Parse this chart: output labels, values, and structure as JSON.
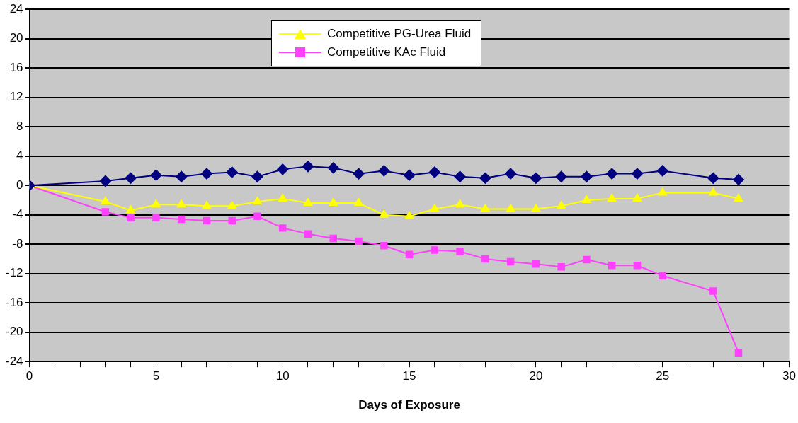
{
  "chart_data": {
    "type": "line",
    "xlabel": "Days of Exposure",
    "xlim": [
      0,
      30
    ],
    "xticks": [
      0,
      {
        "value": 1,
        "label": null
      },
      {
        "value": 2,
        "label": null
      },
      {
        "value": 3,
        "label": null
      },
      {
        "value": 4,
        "label": null
      },
      5,
      {
        "value": 6,
        "label": null
      },
      {
        "value": 7,
        "label": null
      },
      {
        "value": 8,
        "label": null
      },
      {
        "value": 9,
        "label": null
      },
      10,
      {
        "value": 11,
        "label": null
      },
      {
        "value": 12,
        "label": null
      },
      {
        "value": 13,
        "label": null
      },
      {
        "value": 14,
        "label": null
      },
      15,
      {
        "value": 16,
        "label": null
      },
      {
        "value": 17,
        "label": null
      },
      {
        "value": 18,
        "label": null
      },
      {
        "value": 19,
        "label": null
      },
      20,
      {
        "value": 21,
        "label": null
      },
      {
        "value": 22,
        "label": null
      },
      {
        "value": 23,
        "label": null
      },
      {
        "value": 24,
        "label": null
      },
      25,
      {
        "value": 26,
        "label": null
      },
      {
        "value": 27,
        "label": null
      },
      {
        "value": 28,
        "label": null
      },
      {
        "value": 29,
        "label": null
      },
      30
    ],
    "ylim": [
      -24,
      24
    ],
    "yticks": [
      -24,
      -20,
      -16,
      -12,
      -8,
      -4,
      0,
      4,
      8,
      12,
      16,
      20,
      24
    ],
    "grid": "y",
    "legend": "top",
    "x": [
      0,
      3,
      4,
      5,
      6,
      7,
      8,
      9,
      10,
      11,
      12,
      13,
      14,
      15,
      16,
      17,
      18,
      19,
      20,
      21,
      22,
      23,
      24,
      25,
      27,
      28
    ],
    "series": [
      {
        "color": "#000080",
        "marker": "diamond",
        "values": [
          0,
          0.6,
          1.0,
          1.4,
          1.2,
          1.6,
          1.8,
          1.2,
          2.2,
          2.6,
          2.4,
          1.6,
          2.0,
          1.4,
          1.8,
          1.2,
          1.0,
          1.6,
          1.0,
          1.2,
          1.2,
          1.6,
          1.6,
          2.0,
          1.0,
          0.8
        ]
      },
      {
        "name": "Competitive PG-Urea Fluid",
        "color": "#ffff00",
        "marker": "triangle",
        "values": [
          0,
          -2.2,
          -3.4,
          -2.6,
          -2.6,
          -2.8,
          -2.8,
          -2.2,
          -1.8,
          -2.4,
          -2.4,
          -2.4,
          -4.0,
          -4.2,
          -3.2,
          -2.6,
          -3.2,
          -3.2,
          -3.2,
          -2.8,
          -2.0,
          -1.8,
          -1.8,
          -1.0,
          -1.0,
          -1.8
        ]
      },
      {
        "name": "Competitive KAc Fluid",
        "color": "#ff40ff",
        "marker": "square",
        "values": [
          0,
          -3.6,
          -4.4,
          -4.4,
          -4.6,
          -4.8,
          -4.8,
          -4.2,
          -5.8,
          -6.6,
          -7.2,
          -7.6,
          -8.2,
          -9.4,
          -8.8,
          -9.0,
          -10.0,
          -10.4,
          -10.7,
          -11.1,
          -10.1,
          -10.9,
          -10.9,
          -12.3,
          -14.4,
          -22.8
        ]
      }
    ]
  }
}
